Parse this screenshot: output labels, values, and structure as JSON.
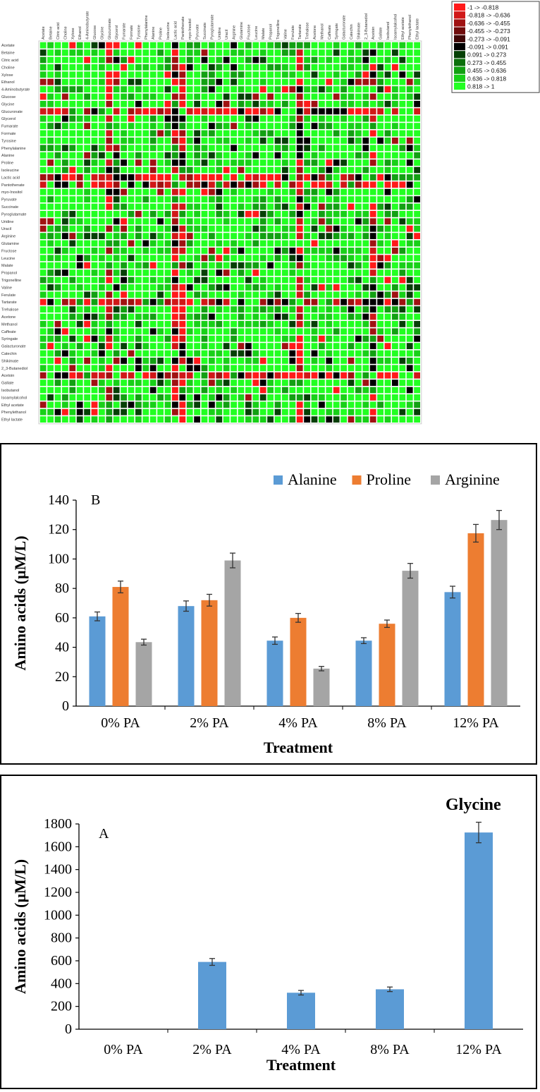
{
  "heatmap": {
    "rows": [
      "Acetate",
      "Betaine",
      "Citric acid",
      "Choline",
      "Xylose",
      "Ethanol",
      "4-Aminobutyrate",
      "Glucose",
      "Glycine",
      "Glucuronate",
      "Glycerol",
      "Fumarate",
      "Formate",
      "Tyrosine",
      "Phenylalanine",
      "Alanine",
      "Proline",
      "Isoleucine",
      "Lactic acid",
      "Pantothenate",
      "myo-Inositol",
      "Pyruvate",
      "Succinate",
      "Pyroglutamate",
      "Uridine",
      "Uracil",
      "Arginine",
      "Glutamine",
      "Fructose",
      "Leucine",
      "Malate",
      "Propanol",
      "Trigonelline",
      "Valine",
      "Ferulate",
      "Tartarate",
      "Trehalose",
      "Acetone",
      "Methanol",
      "Caffeate",
      "Syringate",
      "Galacturonate",
      "Catechin",
      "Shikimate",
      "2_3-Butanediol",
      "Acetoin",
      "Gallate",
      "Isobutanol",
      "Isoamylalcohol",
      "Ethyl acetate",
      "Phenylethanol",
      "Ethyl lactate"
    ],
    "columns": [
      "Acetate",
      "Betaine",
      "Citric acid",
      "Choline",
      "Xylose",
      "Ethanol",
      "4-Aminobutyrate",
      "Glucose",
      "Glycine",
      "Glucuronate",
      "Glycerol",
      "Fumarate",
      "Formate",
      "Tyrosine",
      "Phenylalanine",
      "Alanine",
      "Proline",
      "Isoleucine",
      "Lactic acid",
      "Pantothenate",
      "myo-Inositol",
      "Pyruvate",
      "Succinate",
      "Pyroglutamate",
      "Uridine",
      "Uracil",
      "Arginine",
      "Glutamine",
      "Fructose",
      "Leucine",
      "Malate",
      "Propanol",
      "Trigonelline",
      "Valine",
      "Ferulate",
      "Tartarate",
      "Trehalose",
      "Acetone",
      "Methanol",
      "Caffeate",
      "Syringate",
      "Galacturonate",
      "Catechin",
      "Shikimate",
      "2_3-Butanediol",
      "Acetoin",
      "Gallate",
      "Isobutanol",
      "Isoamylalcohol",
      "Ethyl acetate",
      "Phenylethanol",
      "Ethyl lactate"
    ],
    "legend": [
      {
        "label": "-1 -> -0.818",
        "color": "#ff1a1a"
      },
      {
        "label": "-0.818 -> -0.636",
        "color": "#d01818"
      },
      {
        "label": "-0.636 -> -0.455",
        "color": "#a01212"
      },
      {
        "label": "-0.455 -> -0.273",
        "color": "#700c0c"
      },
      {
        "label": "-0.273 -> -0.091",
        "color": "#400606"
      },
      {
        "label": "-0.091 -> 0.091",
        "color": "#000000"
      },
      {
        "label": "0.091 -> 0.273",
        "color": "#064006"
      },
      {
        "label": "0.273 -> 0.455",
        "color": "#0c700c"
      },
      {
        "label": "0.455 -> 0.636",
        "color": "#12a012"
      },
      {
        "label": "0.636 -> 0.818",
        "color": "#18d018"
      },
      {
        "label": "0.818 -> 1",
        "color": "#22ff22"
      }
    ]
  },
  "chart_data": [
    {
      "type": "bar",
      "panel_letter": "B",
      "title": "",
      "xlabel": "Treatment",
      "ylabel": "Amino acids (µM/L)",
      "categories": [
        "0% PA",
        "2% PA",
        "4% PA",
        "8% PA",
        "12% PA"
      ],
      "ylim": [
        0,
        140
      ],
      "yticks": [
        0,
        20,
        40,
        60,
        80,
        100,
        120,
        140
      ],
      "legend_position": "top-right",
      "grid": false,
      "series": [
        {
          "name": "Alanine",
          "color": "#5b9bd5",
          "values": [
            61,
            68,
            44.5,
            44.5,
            77.5
          ],
          "errors": [
            3,
            3.5,
            2.5,
            2,
            4
          ]
        },
        {
          "name": "Proline",
          "color": "#ed7d31",
          "values": [
            81,
            72,
            60,
            56,
            117.5
          ],
          "errors": [
            4,
            4,
            3,
            2.5,
            6
          ]
        },
        {
          "name": "Arginine",
          "color": "#a5a5a5",
          "values": [
            43.5,
            99,
            25.5,
            92,
            126.5
          ],
          "errors": [
            2,
            5,
            1.5,
            5,
            6.5
          ]
        }
      ]
    },
    {
      "type": "bar",
      "panel_letter": "A",
      "title": "Glycine",
      "xlabel": "Treatment",
      "ylabel": "Amino acids (µM/L)",
      "categories": [
        "0% PA",
        "2% PA",
        "4% PA",
        "8% PA",
        "12% PA"
      ],
      "ylim": [
        0,
        1800
      ],
      "yticks": [
        0,
        200,
        400,
        600,
        800,
        1000,
        1200,
        1400,
        1600,
        1800
      ],
      "grid": false,
      "series": [
        {
          "name": "Glycine",
          "color": "#5b9bd5",
          "values": [
            0,
            590,
            320,
            350,
            1725
          ],
          "errors": [
            0,
            30,
            20,
            20,
            90
          ]
        }
      ]
    }
  ]
}
